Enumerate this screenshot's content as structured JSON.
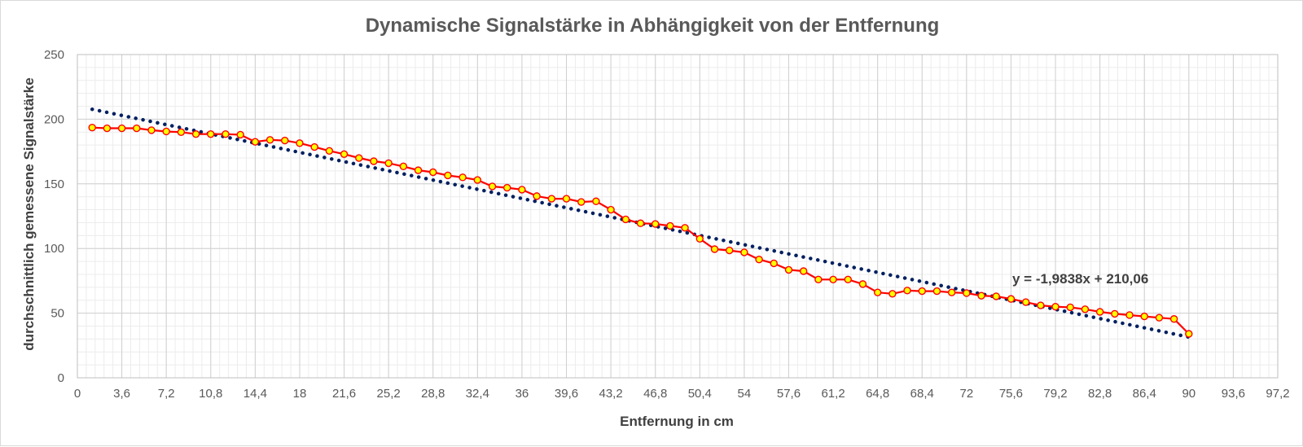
{
  "chart_data": {
    "type": "line",
    "title": "Dynamische Signalstärke in Abhängigkeit von der Entfernung",
    "xlabel": "Entfernung in cm",
    "ylabel": "durchschnittlich  gemessene Signalstärke",
    "xlim": [
      0,
      97.2
    ],
    "ylim": [
      0,
      250
    ],
    "x_ticks": [
      "0",
      "3,6",
      "7,2",
      "10,8",
      "14,4",
      "18",
      "21,6",
      "25,2",
      "28,8",
      "32,4",
      "36",
      "39,6",
      "43,2",
      "46,8",
      "50,4",
      "54",
      "57,6",
      "61,2",
      "64,8",
      "68,4",
      "72",
      "75,6",
      "79,2",
      "82,8",
      "86,4",
      "90",
      "93,6",
      "97,2"
    ],
    "y_ticks": [
      "0",
      "50",
      "100",
      "150",
      "200",
      "250"
    ],
    "grid": true,
    "legend": "none",
    "series": [
      {
        "type": "line-markers",
        "color": "#ff0000",
        "marker_fill": "#ffff00",
        "x": [
          1.2,
          2.4,
          3.6,
          4.8,
          6,
          7.2,
          8.4,
          9.6,
          10.8,
          12,
          13.2,
          14.4,
          15.6,
          16.8,
          18,
          19.2,
          20.4,
          21.6,
          22.8,
          24,
          25.2,
          26.4,
          27.6,
          28.8,
          30,
          31.2,
          32.4,
          33.6,
          34.8,
          36,
          37.2,
          38.4,
          39.6,
          40.8,
          42,
          43.2,
          44.4,
          45.6,
          46.8,
          48,
          49.2,
          50.4,
          51.6,
          52.8,
          54,
          55.2,
          56.4,
          57.6,
          58.8,
          60,
          61.2,
          62.4,
          63.6,
          64.8,
          66,
          67.2,
          68.4,
          69.6,
          70.8,
          72,
          73.2,
          74.4,
          75.6,
          76.8,
          78,
          79.2,
          80.4,
          81.6,
          82.8,
          84,
          85.2,
          86.4,
          87.6,
          88.8,
          90
        ],
        "values": [
          193.5,
          193,
          193,
          193,
          191.5,
          190.5,
          190,
          188.5,
          188.5,
          188.5,
          188,
          182.5,
          184,
          183.5,
          181.5,
          178.5,
          175.5,
          173,
          170,
          167.5,
          166,
          163.5,
          160.5,
          159,
          156.5,
          155,
          153,
          148,
          147,
          145.5,
          140.5,
          138.5,
          138.5,
          136,
          136.5,
          130,
          122.5,
          119.5,
          119,
          117.5,
          116,
          107.5,
          99.5,
          98.5,
          97,
          91.5,
          88.5,
          83.5,
          82.5,
          76,
          76,
          76,
          72.5,
          66,
          65,
          67.5,
          67,
          67,
          66,
          65.5,
          63.5,
          63,
          61,
          58.5,
          56,
          55,
          54.5,
          53,
          51,
          49.5,
          48.5,
          47.5,
          46.5,
          45.5,
          34
        ]
      },
      {
        "type": "trendline",
        "style": "dotted",
        "color": "#002060",
        "equation": "y = -1,9838x + 210,06",
        "slope": -1.9838,
        "intercept": 210.06,
        "x_range": [
          1.2,
          90
        ]
      }
    ]
  }
}
